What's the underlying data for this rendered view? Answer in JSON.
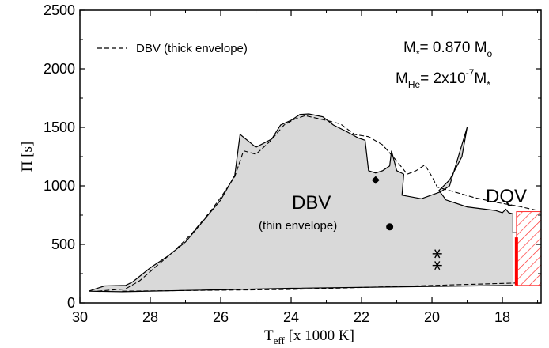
{
  "chart_data": {
    "type": "area",
    "xlabel": "T",
    "xlabel_sub": "eff",
    "xlabel_rest": " [x 1000 K]",
    "ylabel": "Π [s]",
    "xlim": [
      30,
      16.9
    ],
    "ylim": [
      0,
      2500
    ],
    "x_ticks": [
      30,
      28,
      26,
      24,
      22,
      20,
      18
    ],
    "y_ticks": [
      0,
      500,
      1000,
      1500,
      2000,
      2500
    ],
    "legend": {
      "label": "DBV (thick envelope)",
      "placement": "top-left",
      "style": "dashed"
    },
    "annotations": {
      "mass_line": {
        "pre": "M",
        "sub1": "*",
        "mid": "= 0.870 M",
        "sub2": "o"
      },
      "mhe_line": {
        "pre": "M",
        "sub1": "He",
        "mid": "= 2x10",
        "sup": "-7",
        "post": "M",
        "sub2": "*"
      },
      "region_main": "DBV",
      "region_sub": "(thin envelope)",
      "region_dqv": "DQV"
    },
    "colors": {
      "fill": "#d9d9d9",
      "line": "#000000",
      "dqv_hatch": "#ff3030",
      "dqv_bar": "#ff0000"
    },
    "thin_envelope_region": {
      "upper": [
        [
          29.75,
          100
        ],
        [
          29.3,
          145
        ],
        [
          28.7,
          150
        ],
        [
          28.5,
          180
        ],
        [
          28.0,
          300
        ],
        [
          27.5,
          400
        ],
        [
          27.0,
          520
        ],
        [
          26.5,
          700
        ],
        [
          26.0,
          880
        ],
        [
          25.6,
          1090
        ],
        [
          25.45,
          1440
        ],
        [
          25.0,
          1330
        ],
        [
          24.55,
          1400
        ],
        [
          24.3,
          1520
        ],
        [
          24.0,
          1560
        ],
        [
          23.75,
          1610
        ],
        [
          23.5,
          1615
        ],
        [
          23.1,
          1590
        ],
        [
          22.8,
          1520
        ],
        [
          22.4,
          1460
        ],
        [
          22.1,
          1410
        ],
        [
          21.9,
          1390
        ],
        [
          21.8,
          1130
        ],
        [
          21.6,
          1110
        ],
        [
          21.4,
          1130
        ],
        [
          21.2,
          1170
        ],
        [
          21.15,
          1300
        ],
        [
          21.0,
          1130
        ],
        [
          20.8,
          1100
        ],
        [
          20.85,
          920
        ],
        [
          20.3,
          890
        ],
        [
          19.75,
          950
        ],
        [
          19.5,
          1000
        ],
        [
          19.0,
          1500
        ],
        [
          19.15,
          1250
        ],
        [
          19.5,
          1050
        ],
        [
          19.8,
          960
        ],
        [
          19.6,
          880
        ],
        [
          19.0,
          820
        ],
        [
          18.2,
          790
        ],
        [
          18.0,
          770
        ],
        [
          17.9,
          800
        ],
        [
          17.82,
          770
        ],
        [
          17.7,
          760
        ]
      ],
      "lower": [
        [
          17.7,
          150
        ],
        [
          24.0,
          125
        ],
        [
          28.8,
          95
        ],
        [
          29.75,
          100
        ]
      ],
      "notch": [
        [
          17.7,
          760
        ],
        [
          17.7,
          600
        ],
        [
          17.6,
          600
        ]
      ]
    },
    "thick_envelope_curve": {
      "upper": [
        [
          29.5,
          100
        ],
        [
          28.7,
          120
        ],
        [
          28.3,
          190
        ],
        [
          27.8,
          320
        ],
        [
          27.3,
          450
        ],
        [
          26.8,
          600
        ],
        [
          26.3,
          780
        ],
        [
          26.0,
          900
        ],
        [
          25.6,
          1080
        ],
        [
          25.35,
          1300
        ],
        [
          25.0,
          1270
        ],
        [
          24.6,
          1380
        ],
        [
          24.2,
          1520
        ],
        [
          23.9,
          1570
        ],
        [
          23.6,
          1600
        ],
        [
          23.3,
          1580
        ],
        [
          23.0,
          1560
        ],
        [
          22.6,
          1530
        ],
        [
          22.2,
          1440
        ],
        [
          21.8,
          1420
        ],
        [
          21.4,
          1350
        ],
        [
          21.05,
          1230
        ],
        [
          20.7,
          1100
        ],
        [
          20.45,
          1130
        ],
        [
          20.2,
          1180
        ],
        [
          20.0,
          1080
        ],
        [
          19.85,
          990
        ],
        [
          19.5,
          960
        ],
        [
          18.8,
          900
        ],
        [
          18.2,
          860
        ],
        [
          17.6,
          830
        ],
        [
          17.0,
          790
        ]
      ],
      "lower": [
        [
          28.8,
          100
        ],
        [
          24.0,
          115
        ],
        [
          17.6,
          170
        ]
      ]
    },
    "points": [
      {
        "marker": "diamond",
        "x": 21.6,
        "y": 1050
      },
      {
        "marker": "circle",
        "x": 21.2,
        "y": 650
      },
      {
        "marker": "asterisk",
        "x": 19.85,
        "y": 420
      },
      {
        "marker": "asterisk",
        "x": 19.85,
        "y": 320
      }
    ],
    "dqv_region": {
      "xmin": 16.9,
      "xmax": 17.6,
      "ymin": 150,
      "ymax": 780
    },
    "dqv_bar": {
      "x": 17.6,
      "ymin": 150,
      "ymax": 560
    }
  }
}
